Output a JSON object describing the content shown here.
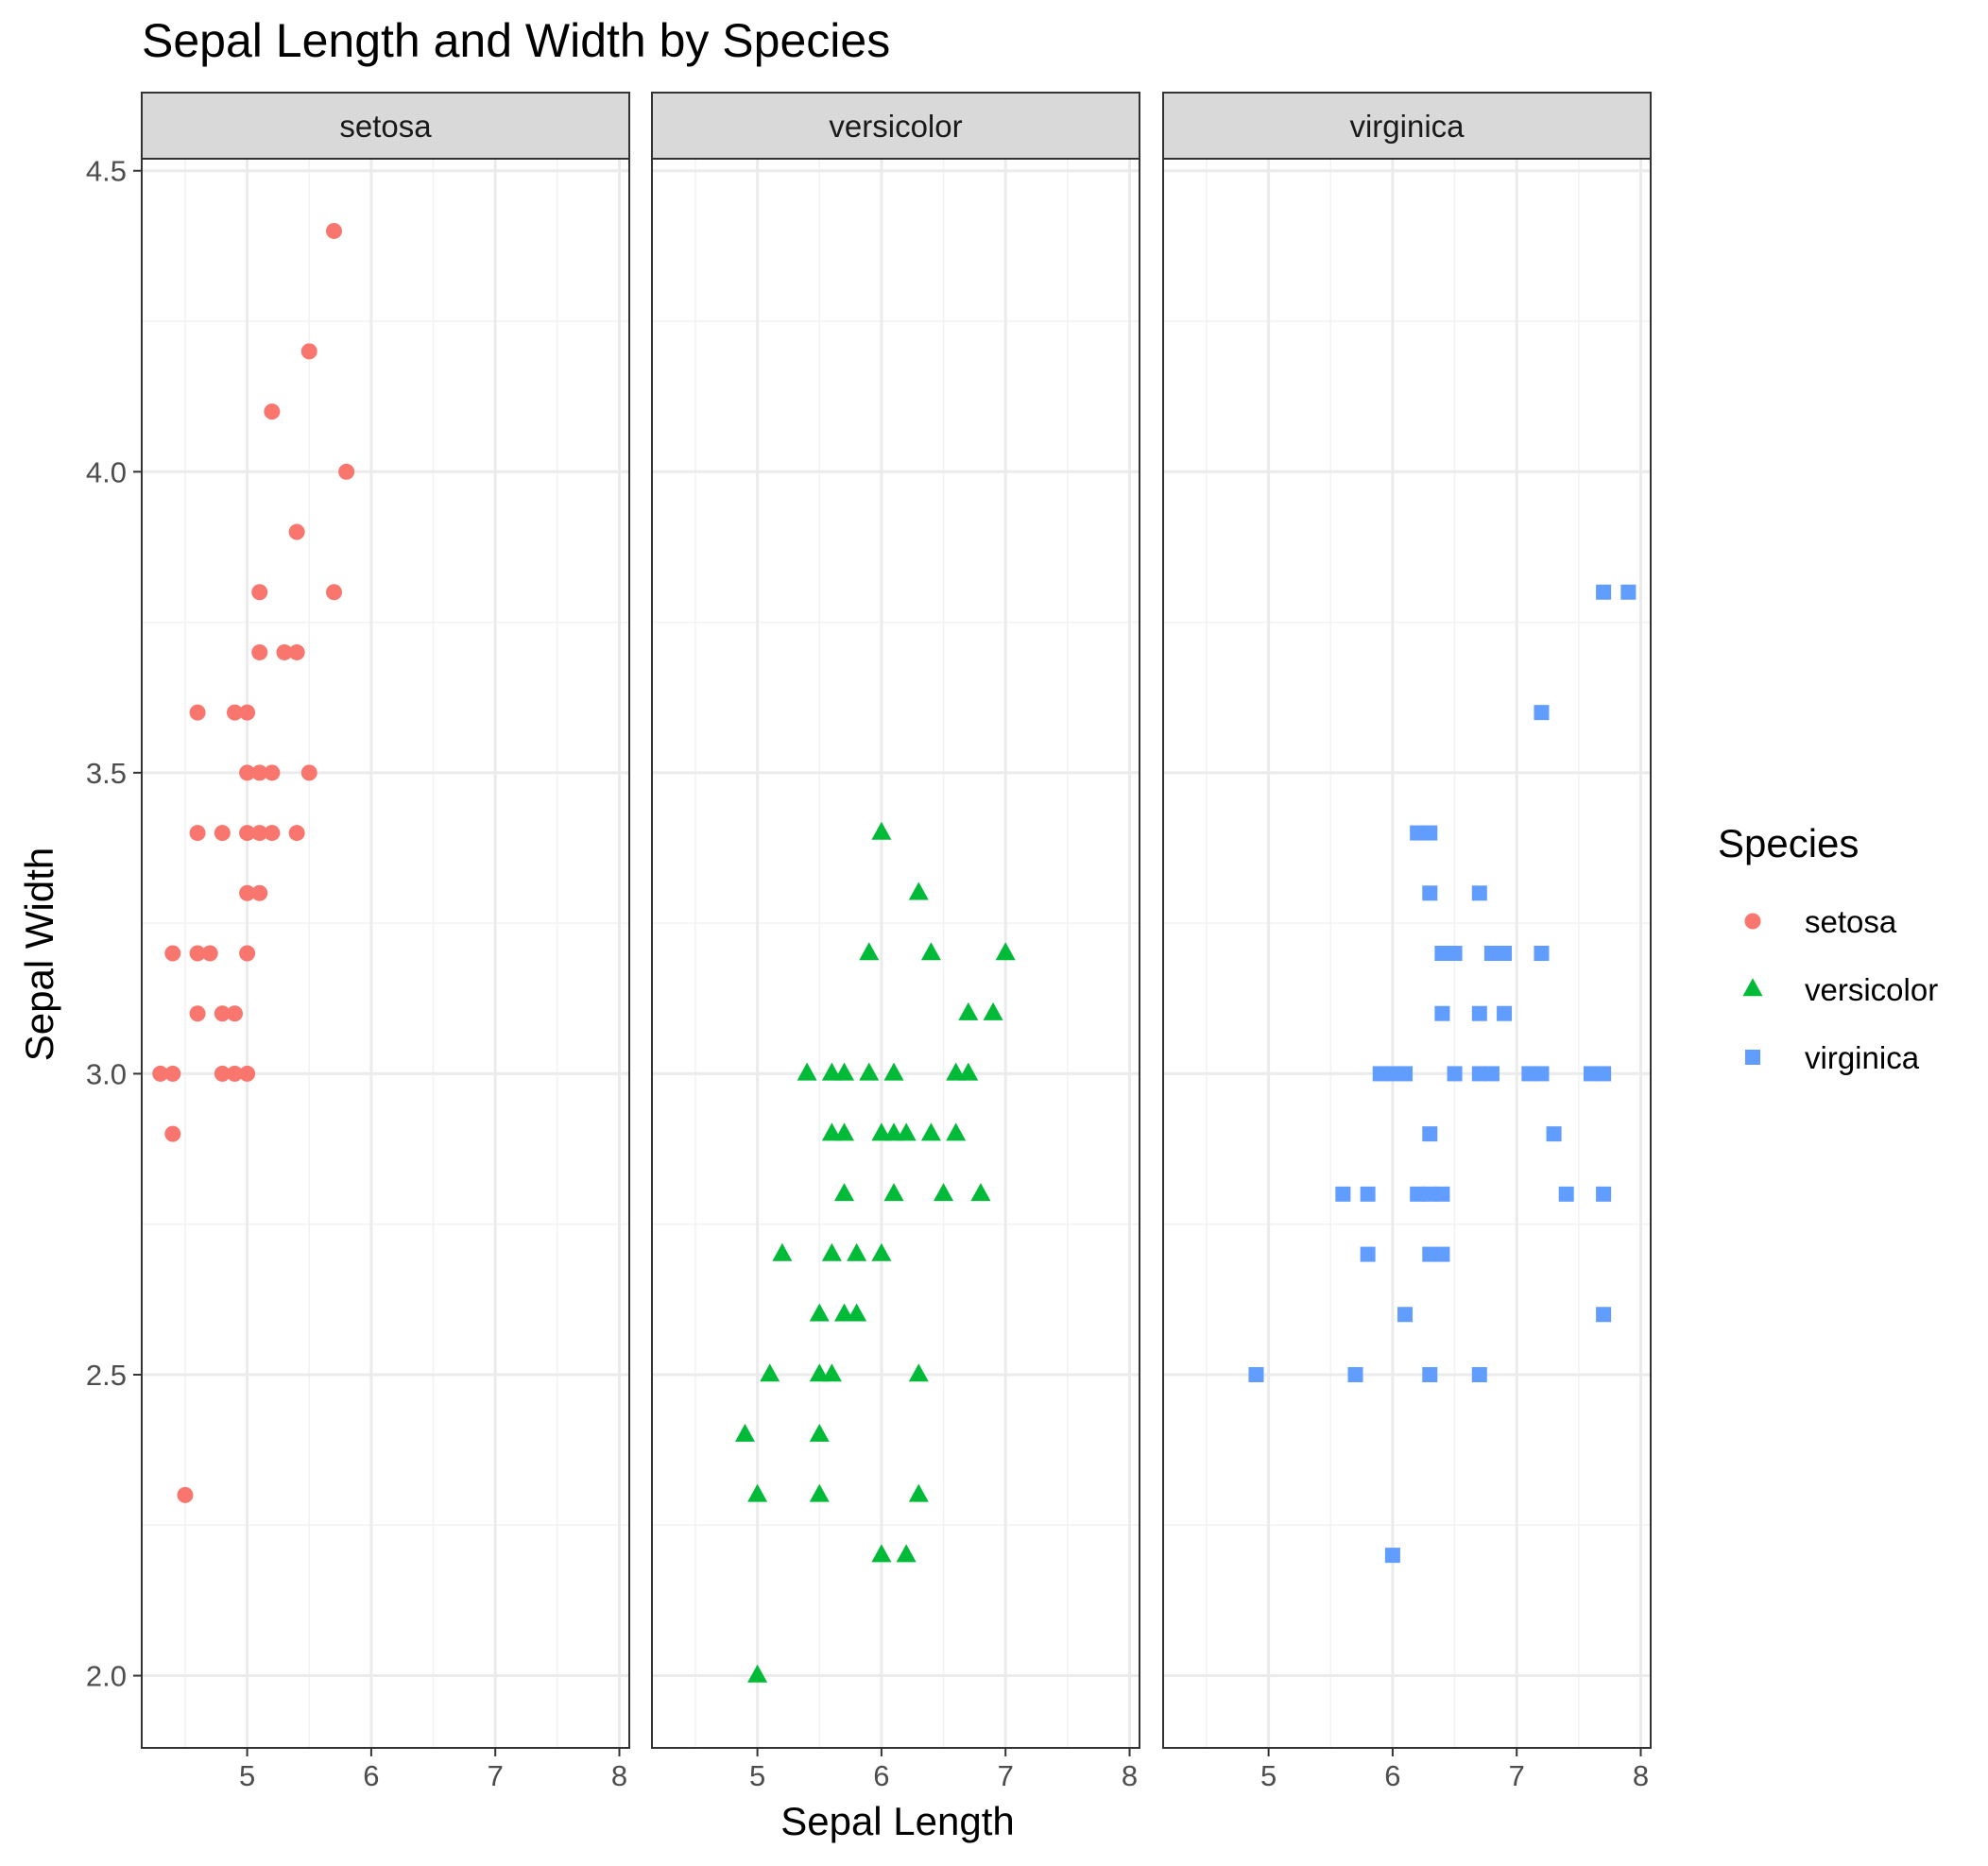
{
  "chart_data": {
    "type": "scatter",
    "title": "Sepal Length and Width by Species",
    "xlabel": "Sepal Length",
    "ylabel": "Sepal Width",
    "xlim": [
      4.15,
      8.08
    ],
    "ylim": [
      1.88,
      4.52
    ],
    "x_ticks": [
      "5",
      "6",
      "7",
      "8"
    ],
    "y_ticks": [
      "2.0",
      "2.5",
      "3.0",
      "3.5",
      "4.0",
      "4.5"
    ],
    "grid": true,
    "facet_by": "Species",
    "legend": {
      "title": "Species",
      "position": "right",
      "entries": [
        "setosa",
        "versicolor",
        "virginica"
      ]
    },
    "series": [
      {
        "name": "setosa",
        "color": "#F8766D",
        "shape": "circle",
        "points": [
          [
            5.7,
            4.4
          ],
          [
            5.5,
            4.2
          ],
          [
            5.2,
            4.1
          ],
          [
            5.8,
            4.0
          ],
          [
            5.4,
            3.9
          ],
          [
            5.1,
            3.8
          ],
          [
            5.7,
            3.8
          ],
          [
            5.1,
            3.7
          ],
          [
            5.3,
            3.7
          ],
          [
            5.4,
            3.7
          ],
          [
            4.6,
            3.6
          ],
          [
            4.9,
            3.6
          ],
          [
            5.0,
            3.6
          ],
          [
            5.0,
            3.5
          ],
          [
            5.1,
            3.5
          ],
          [
            5.2,
            3.5
          ],
          [
            5.5,
            3.5
          ],
          [
            4.6,
            3.4
          ],
          [
            4.8,
            3.4
          ],
          [
            5.0,
            3.4
          ],
          [
            5.1,
            3.4
          ],
          [
            5.2,
            3.4
          ],
          [
            5.4,
            3.4
          ],
          [
            5.0,
            3.3
          ],
          [
            5.1,
            3.3
          ],
          [
            4.4,
            3.2
          ],
          [
            4.6,
            3.2
          ],
          [
            4.7,
            3.2
          ],
          [
            5.0,
            3.2
          ],
          [
            4.6,
            3.1
          ],
          [
            4.8,
            3.1
          ],
          [
            4.9,
            3.1
          ],
          [
            4.3,
            3.0
          ],
          [
            4.4,
            3.0
          ],
          [
            4.8,
            3.0
          ],
          [
            4.9,
            3.0
          ],
          [
            5.0,
            3.0
          ],
          [
            4.4,
            2.9
          ],
          [
            4.5,
            2.3
          ]
        ]
      },
      {
        "name": "versicolor",
        "color": "#00BA38",
        "shape": "triangle",
        "points": [
          [
            6.0,
            3.4
          ],
          [
            6.3,
            3.3
          ],
          [
            5.9,
            3.2
          ],
          [
            6.4,
            3.2
          ],
          [
            7.0,
            3.2
          ],
          [
            6.7,
            3.1
          ],
          [
            6.9,
            3.1
          ],
          [
            5.4,
            3.0
          ],
          [
            5.6,
            3.0
          ],
          [
            5.7,
            3.0
          ],
          [
            5.9,
            3.0
          ],
          [
            6.1,
            3.0
          ],
          [
            6.6,
            3.0
          ],
          [
            6.7,
            3.0
          ],
          [
            5.6,
            2.9
          ],
          [
            5.7,
            2.9
          ],
          [
            6.0,
            2.9
          ],
          [
            6.1,
            2.9
          ],
          [
            6.2,
            2.9
          ],
          [
            6.4,
            2.9
          ],
          [
            6.6,
            2.9
          ],
          [
            5.7,
            2.8
          ],
          [
            6.1,
            2.8
          ],
          [
            6.5,
            2.8
          ],
          [
            6.8,
            2.8
          ],
          [
            5.2,
            2.7
          ],
          [
            5.6,
            2.7
          ],
          [
            5.8,
            2.7
          ],
          [
            6.0,
            2.7
          ],
          [
            5.5,
            2.6
          ],
          [
            5.7,
            2.6
          ],
          [
            5.8,
            2.6
          ],
          [
            5.1,
            2.5
          ],
          [
            5.5,
            2.5
          ],
          [
            5.6,
            2.5
          ],
          [
            6.3,
            2.5
          ],
          [
            4.9,
            2.4
          ],
          [
            5.5,
            2.4
          ],
          [
            5.0,
            2.3
          ],
          [
            5.5,
            2.3
          ],
          [
            6.3,
            2.3
          ],
          [
            6.0,
            2.2
          ],
          [
            6.2,
            2.2
          ],
          [
            5.0,
            2.0
          ]
        ]
      },
      {
        "name": "virginica",
        "color": "#619CFF",
        "shape": "square",
        "points": [
          [
            7.7,
            3.8
          ],
          [
            7.9,
            3.8
          ],
          [
            7.2,
            3.6
          ],
          [
            6.2,
            3.4
          ],
          [
            6.3,
            3.4
          ],
          [
            6.3,
            3.3
          ],
          [
            6.7,
            3.3
          ],
          [
            6.4,
            3.2
          ],
          [
            6.5,
            3.2
          ],
          [
            6.8,
            3.2
          ],
          [
            6.9,
            3.2
          ],
          [
            7.2,
            3.2
          ],
          [
            6.4,
            3.1
          ],
          [
            6.7,
            3.1
          ],
          [
            6.9,
            3.1
          ],
          [
            5.9,
            3.0
          ],
          [
            6.0,
            3.0
          ],
          [
            6.1,
            3.0
          ],
          [
            6.5,
            3.0
          ],
          [
            6.7,
            3.0
          ],
          [
            6.8,
            3.0
          ],
          [
            7.1,
            3.0
          ],
          [
            7.2,
            3.0
          ],
          [
            7.6,
            3.0
          ],
          [
            7.7,
            3.0
          ],
          [
            6.3,
            2.9
          ],
          [
            7.3,
            2.9
          ],
          [
            5.6,
            2.8
          ],
          [
            5.8,
            2.8
          ],
          [
            6.2,
            2.8
          ],
          [
            6.3,
            2.8
          ],
          [
            6.4,
            2.8
          ],
          [
            7.4,
            2.8
          ],
          [
            7.7,
            2.8
          ],
          [
            5.8,
            2.7
          ],
          [
            6.3,
            2.7
          ],
          [
            6.4,
            2.7
          ],
          [
            6.1,
            2.6
          ],
          [
            7.7,
            2.6
          ],
          [
            4.9,
            2.5
          ],
          [
            5.7,
            2.5
          ],
          [
            6.3,
            2.5
          ],
          [
            6.7,
            2.5
          ],
          [
            6.0,
            2.2
          ]
        ]
      }
    ]
  }
}
